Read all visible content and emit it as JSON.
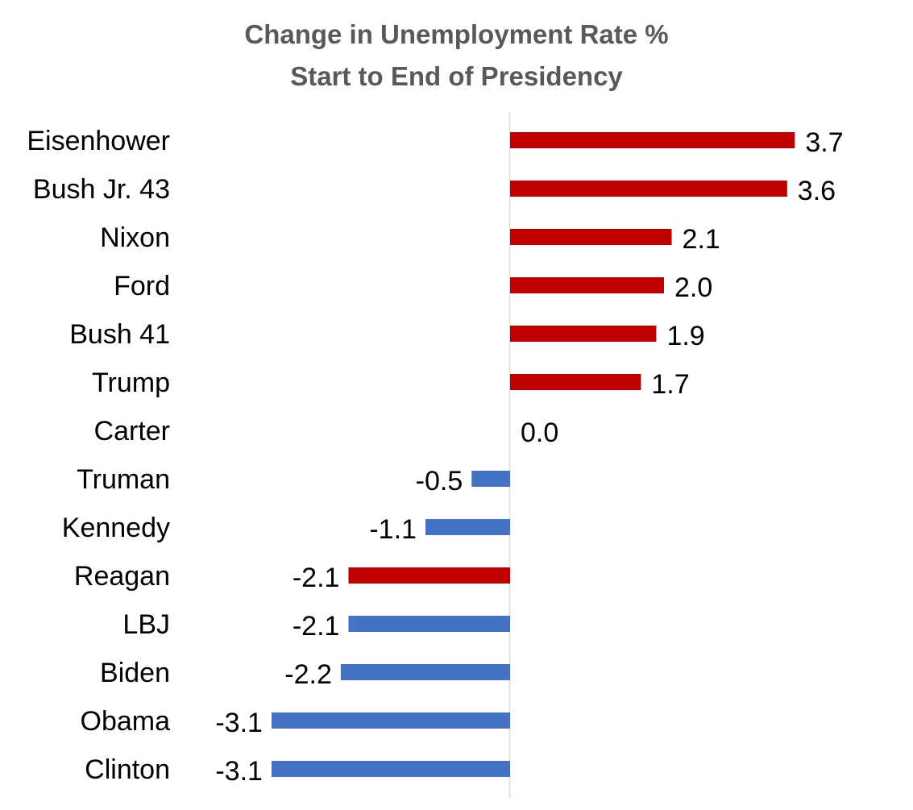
{
  "chart_data": {
    "type": "bar",
    "orientation": "horizontal",
    "title": "Change in Unemployment Rate %",
    "subtitle": "Start to End of Presidency",
    "categories": [
      "Eisenhower",
      "Bush Jr. 43",
      "Nixon",
      "Ford",
      "Bush 41",
      "Trump",
      "Carter",
      "Truman",
      "Kennedy",
      "Reagan",
      "LBJ",
      "Biden",
      "Obama",
      "Clinton"
    ],
    "values": [
      3.7,
      3.6,
      2.1,
      2.0,
      1.9,
      1.7,
      0.0,
      -0.5,
      -1.1,
      -2.1,
      -2.1,
      -2.2,
      -3.1,
      -3.1
    ],
    "value_labels": [
      "3.7",
      "3.6",
      "2.1",
      "2.0",
      "1.9",
      "1.7",
      "0.0",
      "-0.5",
      "-1.1",
      "-2.1",
      "-2.1",
      "-2.2",
      "-3.1",
      "-3.1"
    ],
    "bar_colors": [
      "#c00000",
      "#c00000",
      "#c00000",
      "#c00000",
      "#c00000",
      "#c00000",
      "#c00000",
      "#4472c4",
      "#4472c4",
      "#c00000",
      "#4472c4",
      "#4472c4",
      "#4472c4",
      "#4472c4"
    ],
    "xlim": [
      -3.1,
      3.7
    ],
    "xlabel": "",
    "ylabel": "",
    "grid": false,
    "legend": "none"
  }
}
